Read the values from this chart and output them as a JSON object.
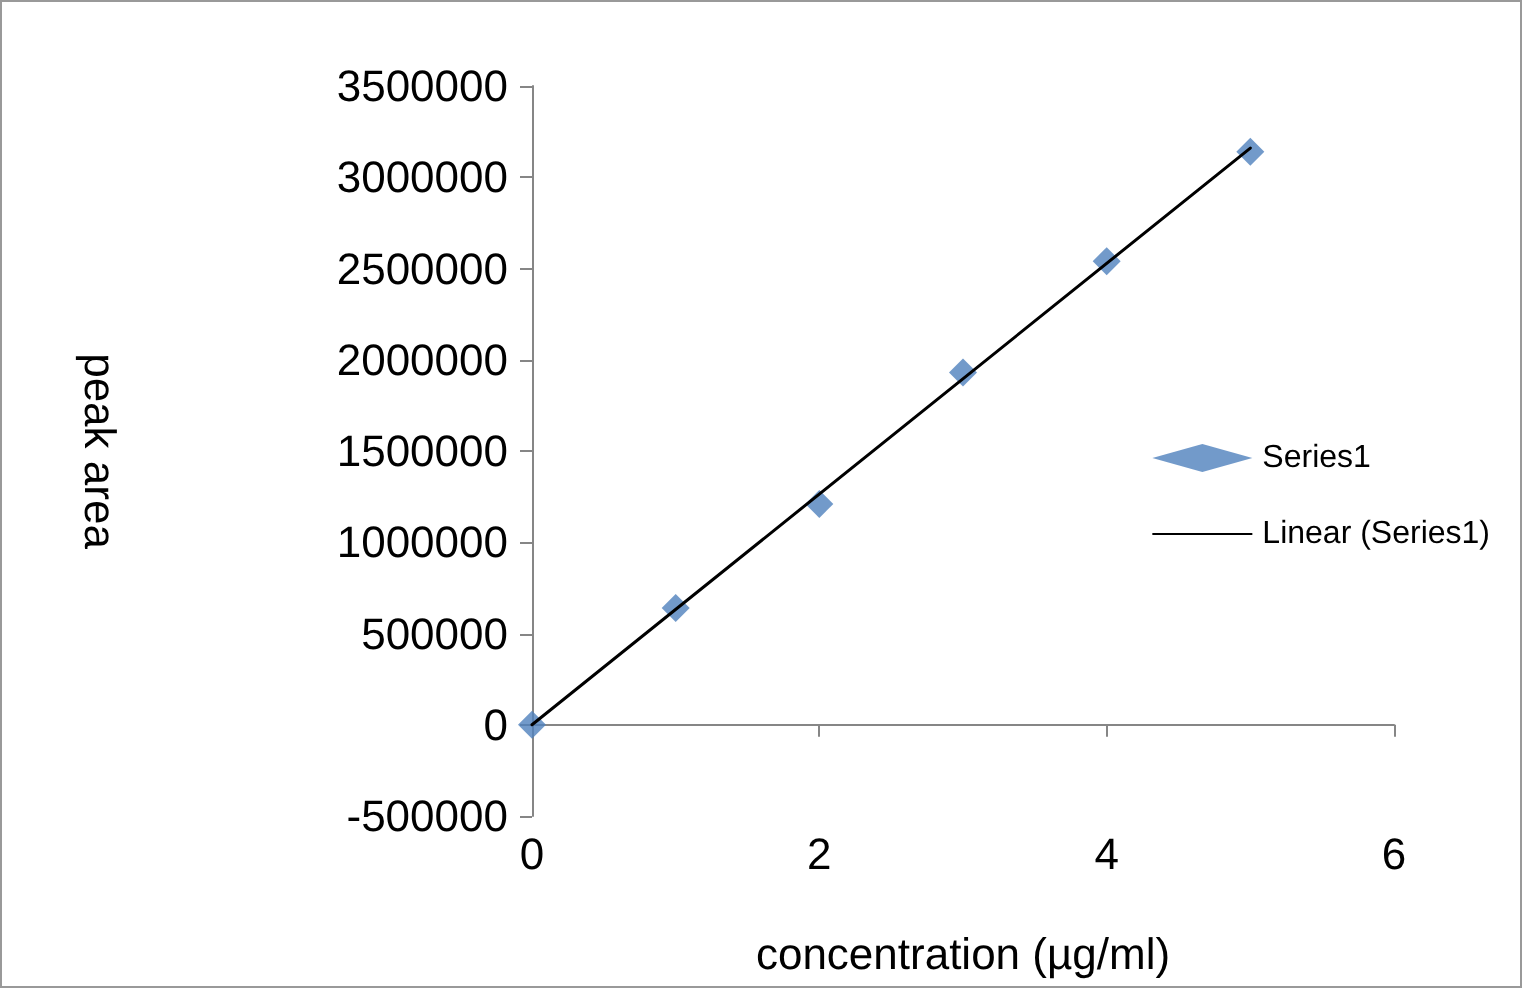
{
  "chart_data": {
    "type": "scatter",
    "xlabel": "concentration (µg/ml)",
    "ylabel": "peak area",
    "x": [
      0,
      1,
      2,
      3,
      4,
      5
    ],
    "series": [
      {
        "name": "Series1",
        "color": "#4f81bd",
        "marker": "diamond",
        "values": [
          0,
          640000,
          1210000,
          1930000,
          2540000,
          3140000
        ]
      },
      {
        "name": "Linear (Series1)",
        "type": "line",
        "color": "#000000",
        "marker": "none",
        "line_style": "solid",
        "x": [
          0,
          5
        ],
        "values": [
          0,
          3160000
        ]
      }
    ],
    "xlim": [
      0,
      6
    ],
    "xticks": [
      0,
      2,
      4,
      6
    ],
    "ylim": [
      -500000,
      3500000
    ],
    "yticks": [
      -500000,
      0,
      500000,
      1000000,
      1500000,
      2000000,
      2500000,
      3000000,
      3500000
    ],
    "grid": false,
    "legend": "right"
  }
}
